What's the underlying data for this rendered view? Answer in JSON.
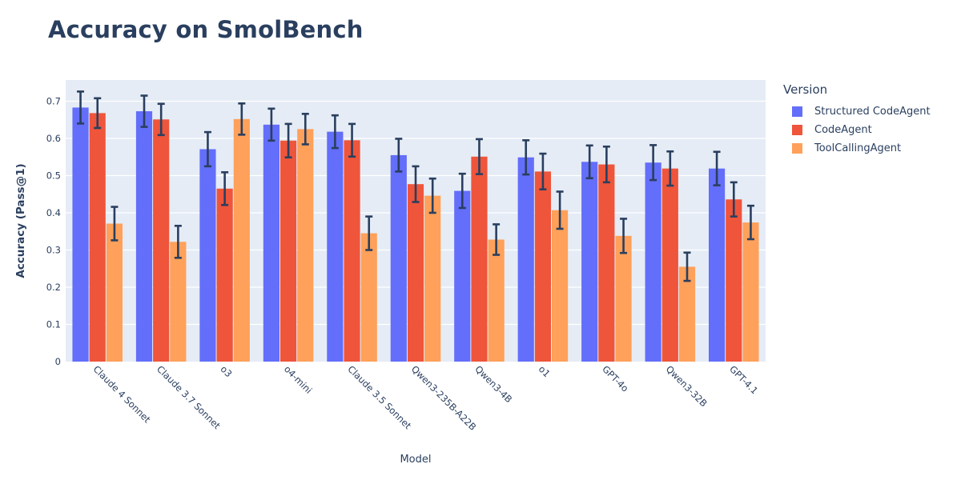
{
  "title": "Accuracy on SmolBench",
  "chart_data": {
    "type": "bar",
    "title": "Accuracy on SmolBench",
    "xlabel": "Model",
    "ylabel": "Accuracy (Pass@1)",
    "ylim": [
      0,
      0.757
    ],
    "yticks": [
      0,
      0.1,
      0.2,
      0.3,
      0.4,
      0.5,
      0.6,
      0.7
    ],
    "grid": true,
    "legend_position": "right",
    "legend_title": "Version",
    "plot_bg": "#e5ecf6",
    "grid_color": "#ffffff",
    "text_color": "#2a3f5f",
    "error_bar_color": "#2a3f5f",
    "categories": [
      "Claude 4 Sonnet",
      "Claude 3.7 Sonnet",
      "o3",
      "o4-mini",
      "Claude 3.5 Sonnet",
      "Qwen3-235B-A22B",
      "Qwen3-4B",
      "o1",
      "GPT-4o",
      "Qwen3-32B",
      "GPT-4.1"
    ],
    "series": [
      {
        "name": "Structured CodeAgent",
        "color": "#636efa",
        "values": [
          0.683,
          0.673,
          0.571,
          0.637,
          0.618,
          0.555,
          0.459,
          0.549,
          0.537,
          0.535,
          0.519
        ],
        "errors": [
          0.043,
          0.042,
          0.046,
          0.043,
          0.044,
          0.044,
          0.046,
          0.046,
          0.044,
          0.047,
          0.045
        ]
      },
      {
        "name": "CodeAgent",
        "color": "#ef553b",
        "values": [
          0.668,
          0.651,
          0.465,
          0.594,
          0.595,
          0.477,
          0.551,
          0.511,
          0.53,
          0.519,
          0.436
        ],
        "errors": [
          0.04,
          0.042,
          0.044,
          0.045,
          0.044,
          0.048,
          0.047,
          0.048,
          0.048,
          0.046,
          0.046
        ]
      },
      {
        "name": "ToolCallingAgent",
        "color": "#ffa15a",
        "values": [
          0.371,
          0.322,
          0.652,
          0.625,
          0.345,
          0.446,
          0.328,
          0.407,
          0.338,
          0.255,
          0.374
        ],
        "errors": [
          0.045,
          0.043,
          0.042,
          0.041,
          0.045,
          0.046,
          0.041,
          0.05,
          0.046,
          0.038,
          0.045
        ]
      }
    ]
  }
}
